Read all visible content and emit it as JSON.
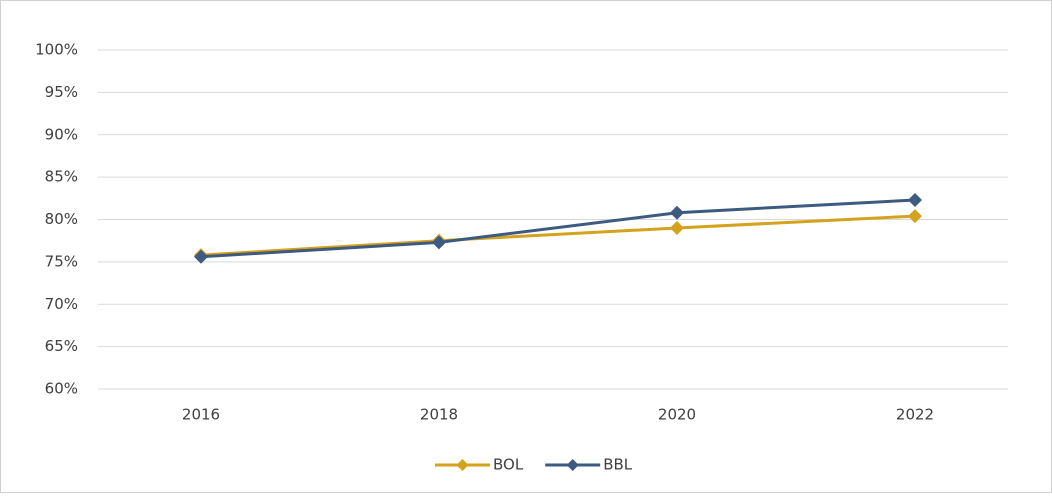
{
  "chart_data": {
    "type": "line",
    "categories": [
      "2016",
      "2018",
      "2020",
      "2022"
    ],
    "series": [
      {
        "name": "BOL",
        "color": "#d4a21c",
        "values": [
          75.8,
          77.5,
          79.0,
          80.4
        ]
      },
      {
        "name": "BBL",
        "color": "#3d5a80",
        "values": [
          75.6,
          77.3,
          80.8,
          82.3
        ]
      }
    ],
    "ylim": [
      60,
      100
    ],
    "yticks": [
      {
        "value": 60,
        "label": "60%"
      },
      {
        "value": 65,
        "label": "65%"
      },
      {
        "value": 70,
        "label": "70%"
      },
      {
        "value": 75,
        "label": "75%"
      },
      {
        "value": 80,
        "label": "80%"
      },
      {
        "value": 85,
        "label": "85%"
      },
      {
        "value": 90,
        "label": "90%"
      },
      {
        "value": 95,
        "label": "95%"
      },
      {
        "value": 100,
        "label": "100%"
      }
    ],
    "grid": true,
    "legend": "bottom"
  }
}
